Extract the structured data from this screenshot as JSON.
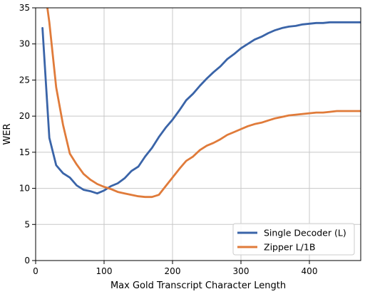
{
  "chart_data": {
    "type": "line",
    "xlabel": "Max Gold Transcript Character Length",
    "ylabel": "WER",
    "xlim": [
      0,
      475
    ],
    "ylim": [
      0,
      35
    ],
    "xticks": [
      0,
      100,
      200,
      300,
      400
    ],
    "yticks": [
      0,
      5,
      10,
      15,
      20,
      25,
      30,
      35
    ],
    "grid": true,
    "legend_position": "bottom-right",
    "series": [
      {
        "name": "Single Decoder (L)",
        "color": "#3a64a8",
        "x": [
          10,
          20,
          30,
          40,
          50,
          60,
          70,
          80,
          90,
          100,
          110,
          120,
          130,
          140,
          150,
          160,
          170,
          180,
          190,
          200,
          210,
          220,
          230,
          240,
          250,
          260,
          270,
          280,
          290,
          300,
          310,
          320,
          330,
          340,
          350,
          360,
          370,
          380,
          390,
          400,
          410,
          420,
          430,
          440,
          450,
          460,
          475
        ],
        "y": [
          32.2,
          17.0,
          13.2,
          12.1,
          11.5,
          10.4,
          9.8,
          9.6,
          9.3,
          9.7,
          10.3,
          10.7,
          11.4,
          12.4,
          13.0,
          14.4,
          15.6,
          17.1,
          18.4,
          19.5,
          20.8,
          22.2,
          23.1,
          24.2,
          25.2,
          26.1,
          26.9,
          27.9,
          28.6,
          29.4,
          30.0,
          30.6,
          31.0,
          31.5,
          31.9,
          32.2,
          32.4,
          32.5,
          32.7,
          32.8,
          32.9,
          32.9,
          33.0,
          33.0,
          33.0,
          33.0,
          33.0
        ]
      },
      {
        "name": "Zipper L/1B",
        "color": "#e07b3a",
        "x": [
          15,
          20,
          30,
          40,
          50,
          60,
          70,
          80,
          90,
          100,
          110,
          120,
          130,
          140,
          150,
          160,
          170,
          180,
          190,
          200,
          210,
          220,
          230,
          240,
          250,
          260,
          270,
          280,
          290,
          300,
          310,
          320,
          330,
          340,
          350,
          360,
          370,
          380,
          390,
          400,
          410,
          420,
          430,
          440,
          450,
          460,
          475
        ],
        "y": [
          36.5,
          33.0,
          24.0,
          18.8,
          14.8,
          13.3,
          12.0,
          11.2,
          10.6,
          10.2,
          9.9,
          9.5,
          9.3,
          9.1,
          8.9,
          8.8,
          8.8,
          9.1,
          10.3,
          11.5,
          12.7,
          13.8,
          14.4,
          15.3,
          15.9,
          16.3,
          16.8,
          17.4,
          17.8,
          18.2,
          18.6,
          18.9,
          19.1,
          19.4,
          19.7,
          19.9,
          20.1,
          20.2,
          20.3,
          20.4,
          20.5,
          20.5,
          20.6,
          20.7,
          20.7,
          20.7,
          20.7
        ]
      }
    ]
  }
}
